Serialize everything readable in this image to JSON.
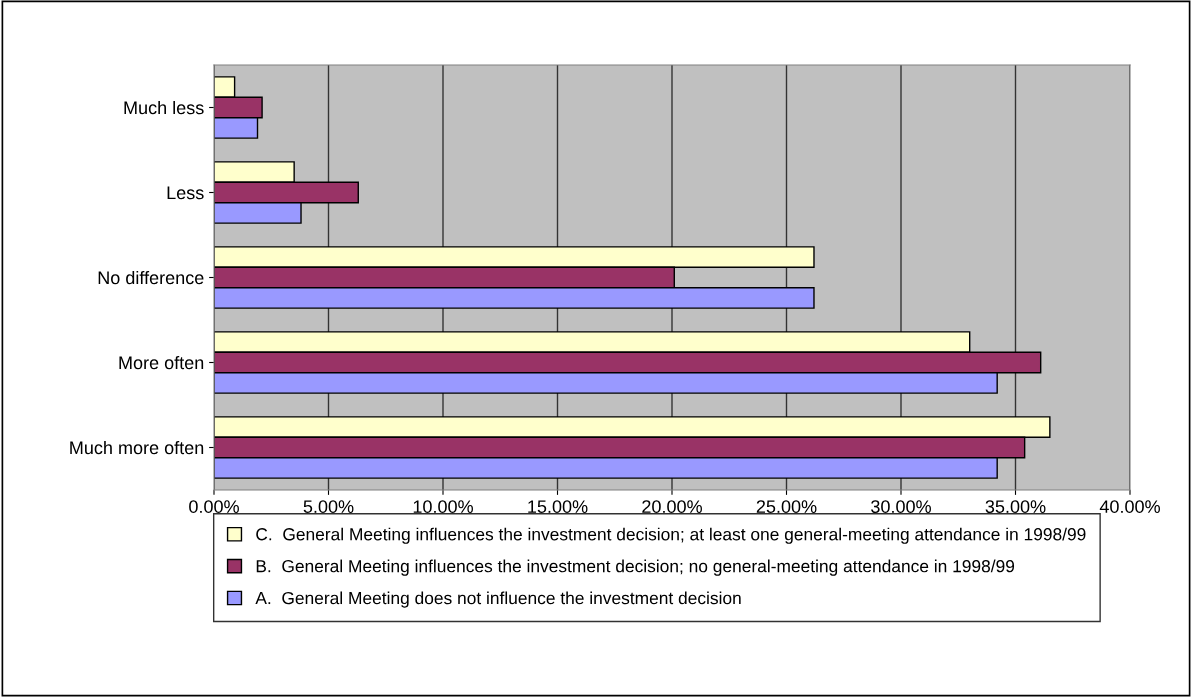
{
  "chart_data": {
    "type": "bar",
    "orientation": "horizontal",
    "categories": [
      "Much less",
      "Less",
      "No difference",
      "More often",
      "Much more often"
    ],
    "series": [
      {
        "name": "C.  General Meeting influences the investment decision; at least one general-meeting attendance in 1998/99",
        "color": "#ffffcc",
        "values": [
          0.9,
          3.5,
          26.2,
          33.0,
          36.5
        ]
      },
      {
        "name": "B.  General Meeting influences the investment decision; no general-meeting attendance in 1998/99",
        "color": "#993366",
        "values": [
          2.1,
          6.3,
          20.1,
          36.1,
          35.4
        ]
      },
      {
        "name": "A.  General Meeting does not influence the investment decision",
        "color": "#9999ff",
        "values": [
          1.9,
          3.8,
          26.2,
          34.2,
          34.2
        ]
      }
    ],
    "xlim": [
      0,
      40
    ],
    "xticks": [
      {
        "value": 0,
        "label": "0.00%"
      },
      {
        "value": 5,
        "label": "5.00%"
      },
      {
        "value": 10,
        "label": "10.00%"
      },
      {
        "value": 15,
        "label": "15.00%"
      },
      {
        "value": 20,
        "label": "20.00%"
      },
      {
        "value": 25,
        "label": "25.00%"
      },
      {
        "value": 30,
        "label": "30.00%"
      },
      {
        "value": 35,
        "label": "35.00%"
      },
      {
        "value": 40,
        "label": "40.00%"
      }
    ],
    "grid": "x",
    "legend": "bottom"
  }
}
